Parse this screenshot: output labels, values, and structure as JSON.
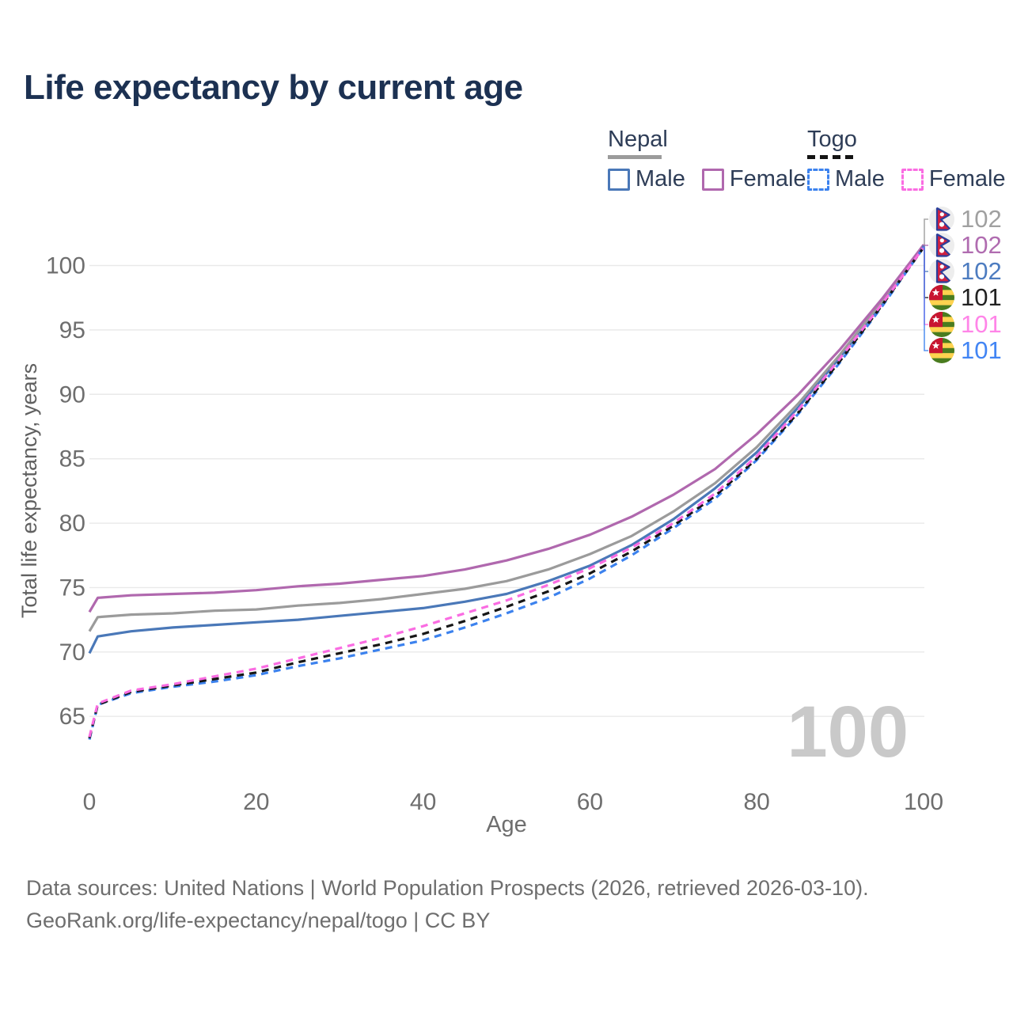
{
  "header": {
    "title": "Life expectancy by current age"
  },
  "legend": {
    "groups": [
      {
        "name": "Nepal",
        "line_style": "solid",
        "underline_color": "#9b9b9b",
        "items": [
          {
            "label": "Male",
            "color": "#4a78b8",
            "dashed": false
          },
          {
            "label": "Female",
            "color": "#b068ae",
            "dashed": false
          }
        ]
      },
      {
        "name": "Togo",
        "line_style": "dashed",
        "underline_color": "#141414",
        "items": [
          {
            "label": "Male",
            "color": "#3c82ee",
            "dashed": true
          },
          {
            "label": "Female",
            "color": "#fa6ce2",
            "dashed": true
          }
        ]
      }
    ]
  },
  "chart_data": {
    "type": "line",
    "title": "Life expectancy by current age",
    "xlabel": "Age",
    "ylabel": "Total life expectancy, years",
    "xlim": [
      0,
      100
    ],
    "ylim": [
      62,
      103
    ],
    "x_ticks": [
      0,
      20,
      40,
      60,
      80,
      100
    ],
    "y_ticks": [
      65,
      70,
      75,
      80,
      85,
      90,
      95,
      100
    ],
    "grid": "horizontal-only",
    "legend_position": "top-right",
    "age_counter_watermark": "100",
    "ages": [
      0,
      1,
      5,
      10,
      15,
      20,
      25,
      30,
      35,
      40,
      45,
      50,
      55,
      60,
      65,
      70,
      75,
      80,
      85,
      90,
      95,
      100
    ],
    "series": [
      {
        "name": "Nepal Both sexes",
        "country": "Nepal",
        "sex": "Both sexes",
        "line_style": "solid",
        "color": "#9b9b9b",
        "label_color": "#a0a0a0",
        "flag": "nepal",
        "end_label": "102",
        "values": [
          71.6,
          72.7,
          72.9,
          73.0,
          73.2,
          73.3,
          73.6,
          73.8,
          74.1,
          74.5,
          74.9,
          75.5,
          76.4,
          77.6,
          79.0,
          80.9,
          83.1,
          85.9,
          89.3,
          93.1,
          97.2,
          101.6
        ]
      },
      {
        "name": "Nepal Female",
        "country": "Nepal",
        "sex": "Female",
        "line_style": "solid",
        "color": "#b068ae",
        "label_color": "#b06cb0",
        "flag": "nepal",
        "end_label": "102",
        "values": [
          73.1,
          74.2,
          74.4,
          74.5,
          74.6,
          74.8,
          75.1,
          75.3,
          75.6,
          75.9,
          76.4,
          77.1,
          78.0,
          79.1,
          80.5,
          82.2,
          84.2,
          86.9,
          90.0,
          93.5,
          97.4,
          101.6
        ]
      },
      {
        "name": "Nepal Male",
        "country": "Nepal",
        "sex": "Male",
        "line_style": "solid",
        "color": "#4a78b8",
        "label_color": "#4d7cc0",
        "flag": "nepal",
        "end_label": "102",
        "values": [
          69.9,
          71.2,
          71.6,
          71.9,
          72.1,
          72.3,
          72.5,
          72.8,
          73.1,
          73.4,
          73.9,
          74.5,
          75.5,
          76.7,
          78.3,
          80.3,
          82.7,
          85.5,
          89.0,
          92.9,
          97.1,
          101.5
        ]
      },
      {
        "name": "Togo Both sexes",
        "country": "Togo",
        "sex": "Both sexes",
        "line_style": "dashed",
        "color": "#161616",
        "label_color": "#222222",
        "flag": "togo",
        "end_label": "101",
        "values": [
          63.3,
          65.9,
          66.9,
          67.4,
          67.9,
          68.4,
          69.2,
          69.9,
          70.6,
          71.4,
          72.4,
          73.5,
          74.7,
          76.1,
          77.8,
          79.8,
          82.1,
          85.0,
          88.6,
          92.6,
          96.9,
          101.4
        ]
      },
      {
        "name": "Togo Female",
        "country": "Togo",
        "sex": "Female",
        "line_style": "dashed",
        "color": "#fa6ce2",
        "label_color": "#ff85e8",
        "flag": "togo",
        "end_label": "101",
        "values": [
          63.4,
          66.0,
          67.0,
          67.5,
          68.1,
          68.7,
          69.5,
          70.3,
          71.1,
          72.0,
          73.0,
          74.0,
          75.2,
          76.5,
          78.1,
          80.0,
          82.3,
          85.2,
          88.8,
          92.8,
          97.0,
          101.4
        ]
      },
      {
        "name": "Togo Male",
        "country": "Togo",
        "sex": "Male",
        "line_style": "dashed",
        "color": "#3c82ee",
        "label_color": "#4285f4",
        "flag": "togo",
        "end_label": "101",
        "values": [
          63.2,
          65.9,
          66.8,
          67.3,
          67.7,
          68.2,
          68.9,
          69.5,
          70.2,
          70.9,
          71.9,
          73.0,
          74.2,
          75.7,
          77.5,
          79.6,
          81.9,
          84.9,
          88.5,
          92.5,
          96.8,
          101.4
        ]
      }
    ]
  },
  "footer": {
    "line1": "Data sources: United Nations | World Population Prospects (2026, retrieved 2026-03-10).",
    "line2": "GeoRank.org/life-expectancy/nepal/togo | CC BY"
  }
}
